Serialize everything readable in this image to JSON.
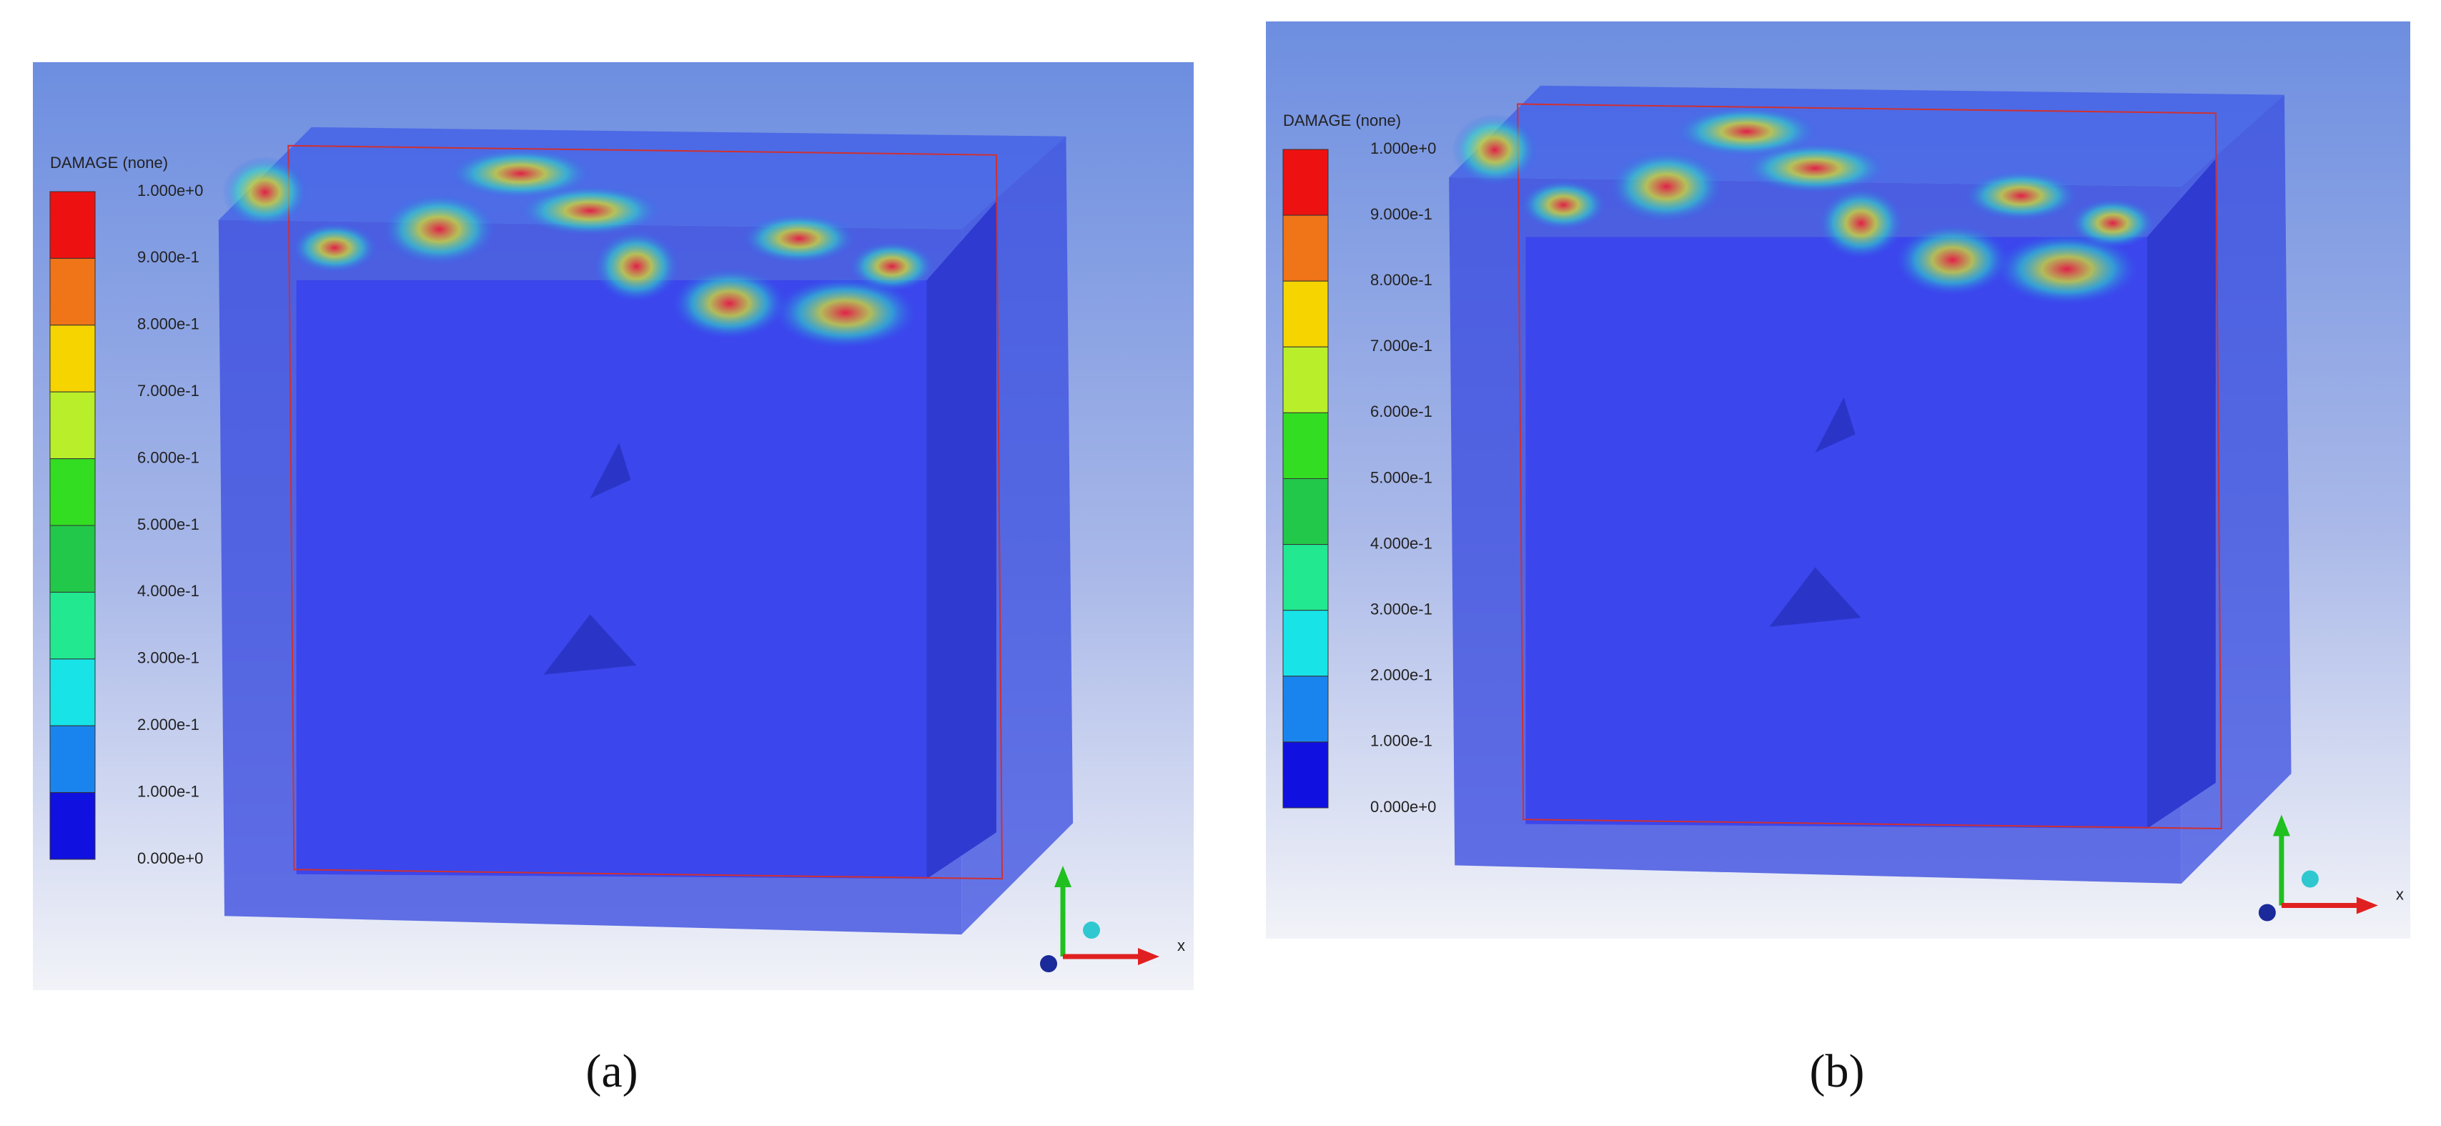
{
  "panels": [
    {
      "legend_title": "DAMAGE (none)",
      "legend_labels": [
        "1.000e+0",
        "9.000e-1",
        "8.000e-1",
        "7.000e-1",
        "6.000e-1",
        "5.000e-1",
        "4.000e-1",
        "3.000e-1",
        "2.000e-1",
        "1.000e-1",
        "0.000e+0"
      ],
      "legend_colors": [
        "#ee1111",
        "#f07418",
        "#f5d400",
        "#b8ee2a",
        "#33dd22",
        "#22c84a",
        "#22e890",
        "#18e4e8",
        "#1a84ee",
        "#1010e0"
      ],
      "axis_label": "x",
      "caption": "(a)"
    },
    {
      "legend_title": "DAMAGE (none)",
      "legend_labels": [
        "1.000e+0",
        "9.000e-1",
        "8.000e-1",
        "7.000e-1",
        "6.000e-1",
        "5.000e-1",
        "4.000e-1",
        "3.000e-1",
        "2.000e-1",
        "1.000e-1",
        "0.000e+0"
      ],
      "legend_colors": [
        "#ee1111",
        "#f07418",
        "#f5d400",
        "#b8ee2a",
        "#33dd22",
        "#22c84a",
        "#22e890",
        "#18e4e8",
        "#1a84ee",
        "#1010e0"
      ],
      "axis_label": "x",
      "caption": "(b)"
    }
  ]
}
